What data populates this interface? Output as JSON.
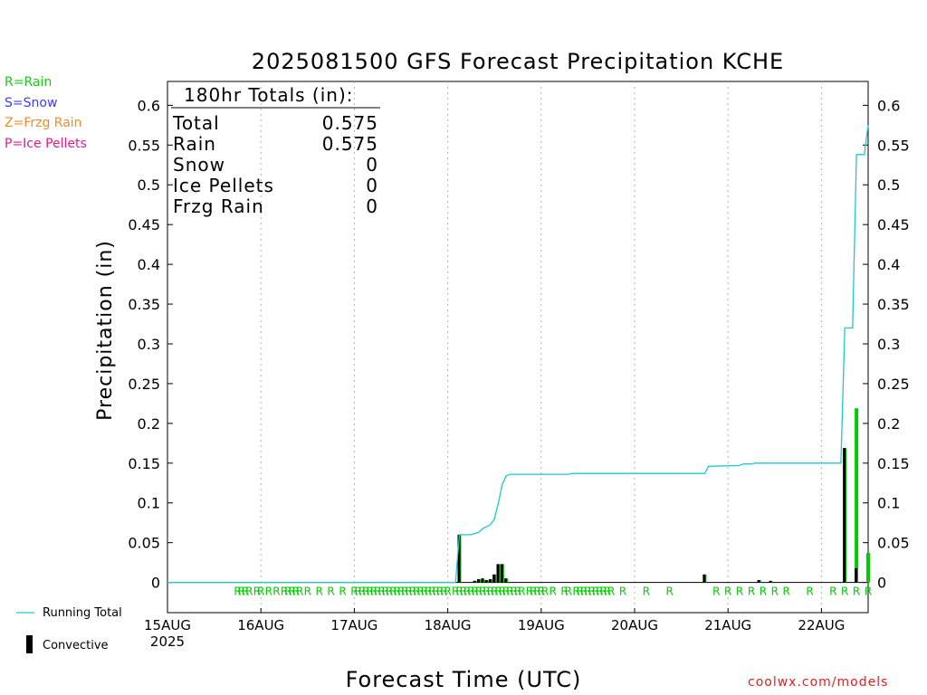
{
  "legend_ptype": [
    {
      "label": "R=Rain",
      "color": "#19c819"
    },
    {
      "label": "S=Snow",
      "color": "#3c3cff"
    },
    {
      "label": "Z=Frzg Rain",
      "color": "#f08c28"
    },
    {
      "label": "P=Ice Pellets",
      "color": "#e6198c"
    }
  ],
  "bottom_legend": {
    "running_total": "Running Total",
    "convective": "Convective"
  },
  "credit": "coolwx.com/models",
  "colors": {
    "rain_bar": "#00cc00",
    "convective_bar": "#000000",
    "running_total": "#20c8d0",
    "rain_marker": "#00cc00",
    "grid": "#b0b0b0"
  },
  "totals_box": {
    "header": "180hr Totals (in):",
    "rows": [
      {
        "label": "Total",
        "value": "0.575"
      },
      {
        "label": "Rain",
        "value": "0.575"
      },
      {
        "label": "Snow",
        "value": "0"
      },
      {
        "label": "Ice Pellets",
        "value": "0"
      },
      {
        "label": "Frzg Rain",
        "value": "0"
      }
    ]
  },
  "chart_data": {
    "type": "bar",
    "title": "2025081500 GFS Forecast Precipitation KCHE",
    "xlabel": "Forecast Time (UTC)",
    "ylabel": "Precipitation (in)",
    "ylim": [
      -0.038,
      0.63
    ],
    "xlim_hours": [
      0,
      180
    ],
    "y_ticks": [
      "0",
      "0.05",
      "0.1",
      "0.15",
      "0.2",
      "0.25",
      "0.3",
      "0.35",
      "0.4",
      "0.45",
      "0.5",
      "0.55",
      "0.6"
    ],
    "x_ticks": [
      {
        "hour": 0,
        "label": "15AUG",
        "sublabel": "2025"
      },
      {
        "hour": 24,
        "label": "16AUG"
      },
      {
        "hour": 48,
        "label": "17AUG"
      },
      {
        "hour": 72,
        "label": "18AUG"
      },
      {
        "hour": 96,
        "label": "19AUG"
      },
      {
        "hour": 120,
        "label": "20AUG"
      },
      {
        "hour": 144,
        "label": "21AUG"
      },
      {
        "hour": 168,
        "label": "22AUG"
      }
    ],
    "grid": "vertical dotted",
    "bars": [
      {
        "hour": 75,
        "total": 0.06,
        "convective": 0.06
      },
      {
        "hour": 79,
        "total": 0.002,
        "convective": 0.002
      },
      {
        "hour": 80,
        "total": 0.004,
        "convective": 0.004
      },
      {
        "hour": 81,
        "total": 0.005,
        "convective": 0.005
      },
      {
        "hour": 82,
        "total": 0.003,
        "convective": 0.003
      },
      {
        "hour": 83,
        "total": 0.004,
        "convective": 0.004
      },
      {
        "hour": 84,
        "total": 0.01,
        "convective": 0.01
      },
      {
        "hour": 85,
        "total": 0.023,
        "convective": 0.023
      },
      {
        "hour": 86,
        "total": 0.023,
        "convective": 0.023
      },
      {
        "hour": 87,
        "total": 0.005,
        "convective": 0.005
      },
      {
        "hour": 138,
        "total": 0.01,
        "convective": 0.01
      },
      {
        "hour": 152,
        "total": 0.003,
        "convective": 0.003
      },
      {
        "hour": 155,
        "total": 0.002,
        "convective": 0.002
      },
      {
        "hour": 174,
        "total": 0.169,
        "convective": 0.169
      },
      {
        "hour": 177,
        "total": 0.219,
        "convective": 0.018
      },
      {
        "hour": 180,
        "total": 0.037,
        "convective": 0.0
      }
    ],
    "running_total": {
      "name": "Running Total",
      "points": [
        [
          0,
          0
        ],
        [
          72,
          0
        ],
        [
          74,
          0
        ],
        [
          75,
          0.06
        ],
        [
          78,
          0.06
        ],
        [
          80,
          0.063
        ],
        [
          81,
          0.068
        ],
        [
          82,
          0.07
        ],
        [
          83,
          0.073
        ],
        [
          84,
          0.08
        ],
        [
          85,
          0.1
        ],
        [
          86,
          0.123
        ],
        [
          87,
          0.134
        ],
        [
          88,
          0.136
        ],
        [
          103,
          0.136
        ],
        [
          104,
          0.137
        ],
        [
          138,
          0.137
        ],
        [
          139,
          0.146
        ],
        [
          147,
          0.147
        ],
        [
          148,
          0.149
        ],
        [
          150,
          0.149
        ],
        [
          151,
          0.15
        ],
        [
          173,
          0.15
        ],
        [
          174,
          0.32
        ],
        [
          176,
          0.32
        ],
        [
          177,
          0.538
        ],
        [
          179,
          0.538
        ],
        [
          180,
          0.575
        ]
      ]
    },
    "ptype_markers": {
      "label": "R",
      "hours": [
        18,
        19,
        20,
        21,
        23,
        24,
        26,
        28,
        30,
        31,
        32,
        33,
        34,
        36,
        39,
        42,
        45,
        48,
        49,
        50,
        51,
        52,
        53,
        54,
        55,
        56,
        57,
        58,
        59,
        60,
        61,
        62,
        63,
        64,
        65,
        66,
        67,
        68,
        69,
        70,
        71,
        72,
        74,
        75,
        76,
        77,
        78,
        79,
        80,
        81,
        82,
        83,
        84,
        85,
        86,
        87,
        88,
        89,
        90,
        91,
        93,
        94,
        95,
        96,
        97,
        99,
        102,
        103,
        105,
        106,
        107,
        108,
        109,
        110,
        111,
        112,
        113,
        114,
        117,
        123,
        129,
        141,
        144,
        147,
        150,
        153,
        156,
        159,
        165,
        171,
        174,
        177,
        180
      ]
    }
  }
}
